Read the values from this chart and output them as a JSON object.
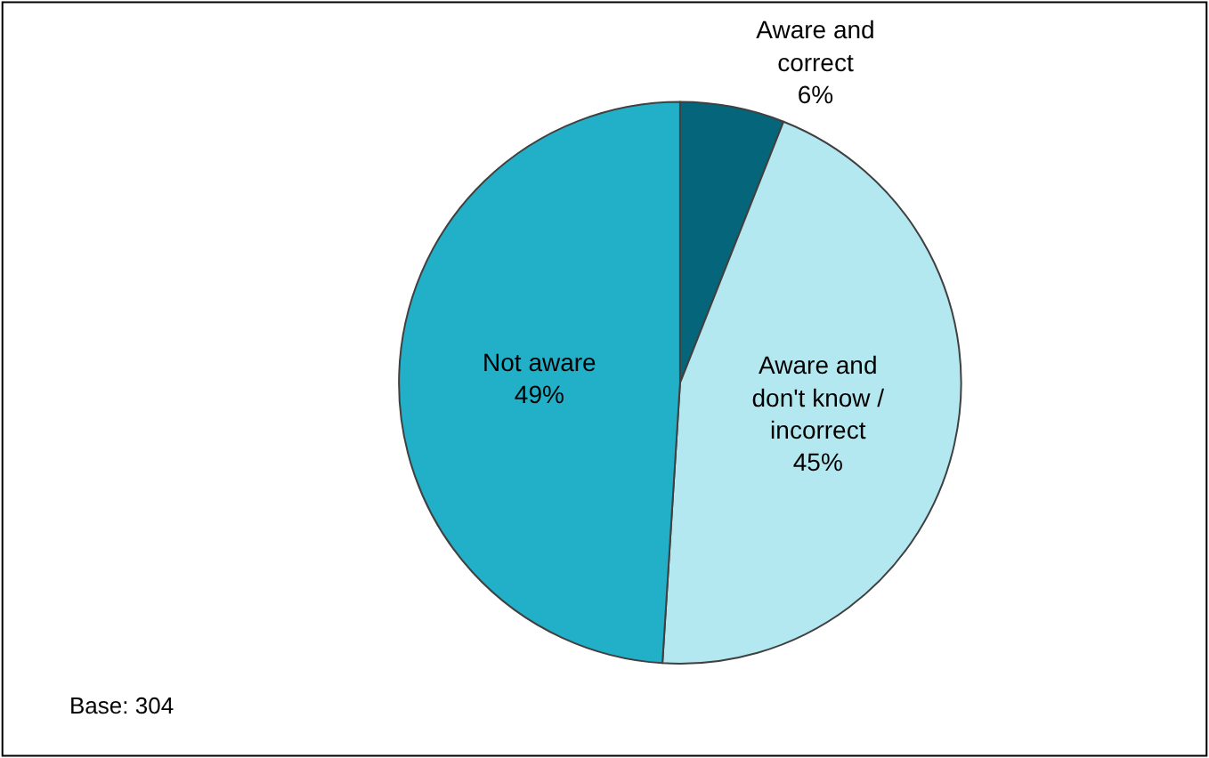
{
  "chart_data": {
    "type": "pie",
    "categories": [
      "Aware and correct",
      "Aware and don't know / incorrect",
      "Not aware"
    ],
    "values": [
      6,
      45,
      49
    ],
    "value_labels": [
      "6%",
      "45%",
      "49%"
    ],
    "colors": [
      "#05657a",
      "#b3e8f0",
      "#22b0c8"
    ],
    "legend": false,
    "annotations": [
      "Base: 304"
    ]
  }
}
